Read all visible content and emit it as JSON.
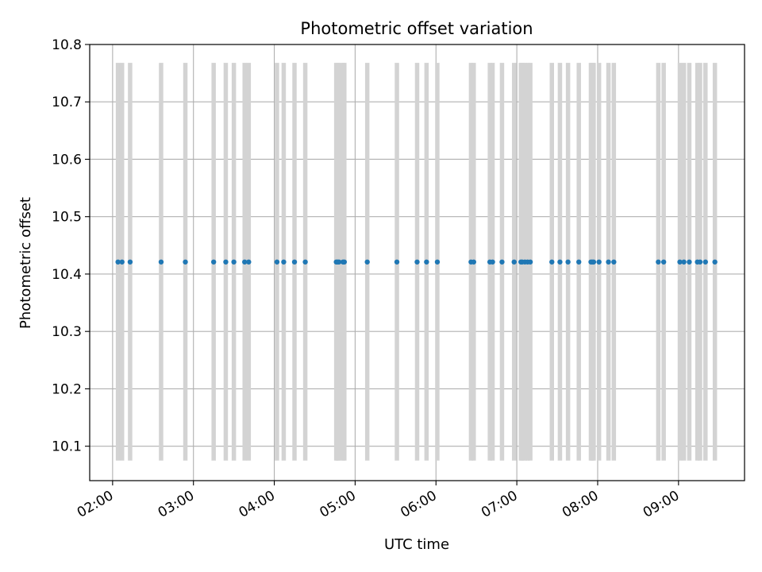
{
  "chart_data": {
    "type": "scatter",
    "title": "Photometric offset variation",
    "xlabel": "UTC time",
    "ylabel": "Photometric offset",
    "xlim": [
      "01:43",
      "09:49"
    ],
    "ylim": [
      10.04,
      10.8
    ],
    "grid": true,
    "x_ticks": [
      "02:00",
      "03:00",
      "04:00",
      "05:00",
      "06:00",
      "07:00",
      "08:00",
      "09:00"
    ],
    "y_ticks": [
      "10.1",
      "10.2",
      "10.3",
      "10.4",
      "10.5",
      "10.6",
      "10.7",
      "10.8"
    ],
    "error_bar_color": "#d3d3d3",
    "point_color": "#1f77b4",
    "error_bar_range": [
      10.075,
      10.768
    ],
    "series": [
      {
        "x": [
          "02:04",
          "02:07",
          "02:13",
          "02:36",
          "02:54",
          "03:15",
          "03:24",
          "03:30",
          "03:38",
          "03:41",
          "04:02",
          "04:07",
          "04:15",
          "04:23",
          "04:46",
          "04:47",
          "04:48",
          "04:51",
          "04:52",
          "05:09",
          "05:31",
          "05:46",
          "05:53",
          "06:01",
          "06:26",
          "06:28",
          "06:40",
          "06:42",
          "06:49",
          "06:58",
          "07:03",
          "07:04",
          "07:06",
          "07:08",
          "07:10",
          "07:26",
          "07:32",
          "07:38",
          "07:46",
          "07:55",
          "07:56",
          "07:57",
          "08:01",
          "08:08",
          "08:12",
          "08:45",
          "08:49",
          "09:01",
          "09:04",
          "09:08",
          "09:14",
          "09:16",
          "09:20",
          "09:27"
        ],
        "y": [
          10.421,
          10.421,
          10.421,
          10.421,
          10.421,
          10.421,
          10.421,
          10.421,
          10.421,
          10.421,
          10.421,
          10.421,
          10.421,
          10.421,
          10.421,
          10.421,
          10.421,
          10.421,
          10.421,
          10.421,
          10.421,
          10.421,
          10.421,
          10.421,
          10.421,
          10.421,
          10.421,
          10.421,
          10.421,
          10.421,
          10.421,
          10.421,
          10.421,
          10.421,
          10.421,
          10.421,
          10.421,
          10.421,
          10.421,
          10.421,
          10.421,
          10.421,
          10.421,
          10.421,
          10.421,
          10.421,
          10.421,
          10.421,
          10.421,
          10.421,
          10.421,
          10.421,
          10.421,
          10.421
        ]
      }
    ]
  }
}
